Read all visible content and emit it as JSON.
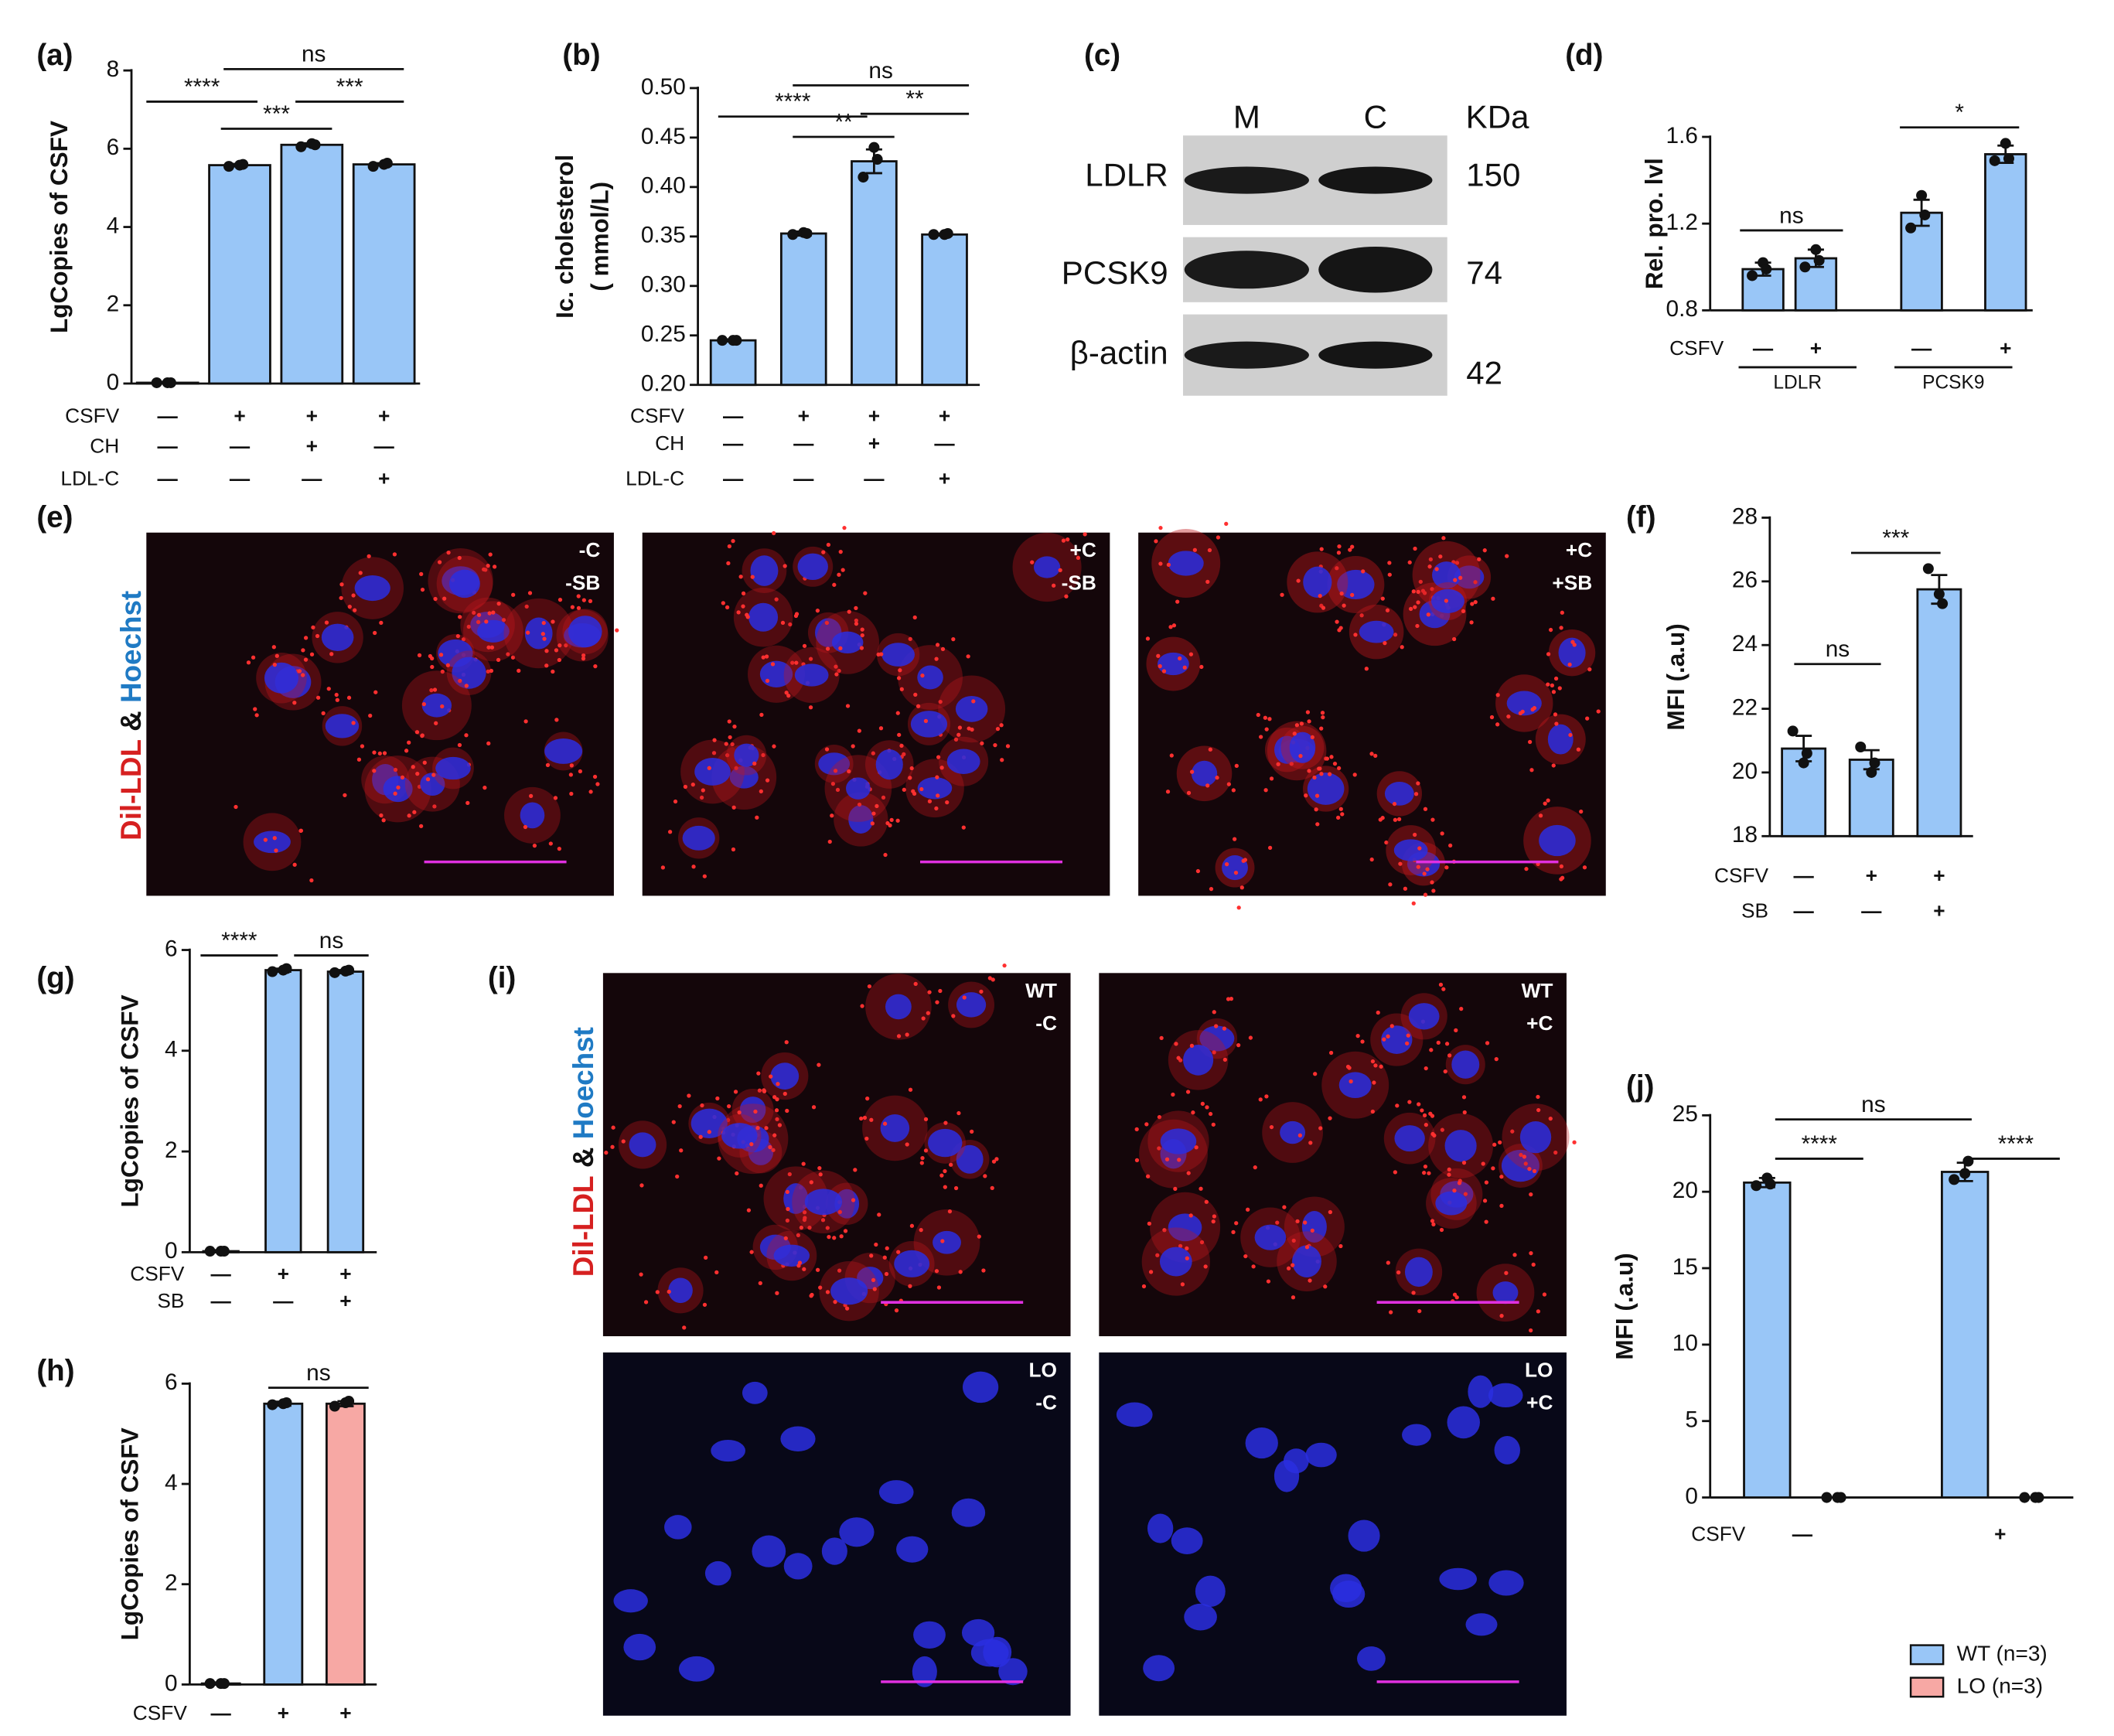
{
  "chart_data": [
    {
      "type": "bar",
      "label": "(a)",
      "ylabel": [
        "LgCopies of CSFV"
      ],
      "ylim": [
        0,
        8
      ],
      "yticks": [
        0,
        2,
        4,
        6,
        8
      ],
      "values": [
        0.02,
        5.58,
        6.1,
        5.6
      ],
      "errors": [
        0.02,
        0.03,
        0.04,
        0.03
      ],
      "color": "#99c6f7",
      "points": [
        [
          0.02,
          0.02,
          0.02
        ],
        [
          5.55,
          5.58,
          5.6
        ],
        [
          6.05,
          6.13,
          6.1
        ],
        [
          5.55,
          5.6,
          5.63
        ]
      ],
      "conditions": [
        {
          "name": "CSFV",
          "marks": [
            "—",
            "+",
            "+",
            "+"
          ]
        },
        {
          "name": "CH",
          "marks": [
            "—",
            "—",
            "+",
            "—"
          ]
        },
        {
          "name": "LDL-C",
          "marks": [
            "—",
            "—",
            "—",
            "+"
          ]
        }
      ],
      "annotations": [
        "****",
        "***",
        "***",
        "ns"
      ]
    },
    {
      "type": "bar",
      "label": "(b)",
      "ylabel": [
        "Ic. cholesterol",
        "( mmol/L)"
      ],
      "ylim": [
        0.2,
        0.5
      ],
      "yticks": [
        {
          "value": 0.2,
          "label": "0.20"
        },
        0.25,
        {
          "value": 0.3,
          "label": "0.30"
        },
        0.35,
        {
          "value": 0.4,
          "label": "0.40"
        },
        0.45,
        {
          "value": 0.5,
          "label": "0.50"
        }
      ],
      "values": [
        0.245,
        0.353,
        0.426,
        0.352
      ],
      "errors": [
        0.001,
        0.002,
        0.012,
        0.001
      ],
      "color": "#99c6f7",
      "points": [
        [
          0.245,
          0.245,
          0.245
        ],
        [
          0.352,
          0.354,
          0.353
        ],
        [
          0.41,
          0.44,
          0.428
        ],
        [
          0.352,
          0.352,
          0.353
        ]
      ],
      "conditions": [
        {
          "name": "CSFV",
          "marks": [
            "—",
            "+",
            "+",
            "+"
          ]
        },
        {
          "name": "CH",
          "marks": [
            "—",
            "—",
            "+",
            "—"
          ]
        },
        {
          "name": "LDL-C",
          "marks": [
            "—",
            "—",
            "—",
            "+"
          ]
        }
      ],
      "annotations": [
        "****",
        "**",
        "**",
        "ns"
      ]
    },
    {
      "type": "bar",
      "label": "(d)",
      "ylabel": [
        "Rel. pro. lvl"
      ],
      "ylim": [
        0.8,
        1.6
      ],
      "yticks": [
        0.8,
        1.2,
        1.6
      ],
      "values": [
        0.99,
        1.04,
        1.25,
        1.52
      ],
      "errors": [
        0.03,
        0.04,
        0.06,
        0.04
      ],
      "color": "#99c6f7",
      "points": [
        [
          0.96,
          1.02,
          0.99
        ],
        [
          1.0,
          1.08,
          1.03
        ],
        [
          1.18,
          1.33,
          1.24
        ],
        [
          1.49,
          1.57,
          1.5
        ]
      ],
      "conditions": [
        {
          "name": "CSFV",
          "marks": [
            "—",
            "+",
            "—",
            "+"
          ]
        }
      ],
      "groups": [
        "LDLR",
        "PCSK9"
      ],
      "annotations": [
        "ns",
        "*"
      ]
    },
    {
      "type": "bar",
      "label": "(f)",
      "ylabel": [
        "MFI (.a.u)"
      ],
      "ylim": [
        18,
        28
      ],
      "yticks": [
        18,
        20,
        22,
        24,
        26,
        28
      ],
      "values": [
        20.75,
        20.4,
        25.75
      ],
      "errors": [
        0.4,
        0.3,
        0.45
      ],
      "color": "#99c6f7",
      "points": [
        [
          21.3,
          20.3,
          20.6
        ],
        [
          20.8,
          20.0,
          20.3
        ],
        [
          26.4,
          25.6,
          25.3
        ]
      ],
      "conditions": [
        {
          "name": "CSFV",
          "marks": [
            "—",
            "+",
            "+"
          ]
        },
        {
          "name": "SB",
          "marks": [
            "—",
            "—",
            "+"
          ]
        }
      ],
      "annotations": [
        "ns",
        "***"
      ]
    },
    {
      "type": "bar",
      "label": "(g)",
      "ylabel": [
        "LgCopies of CSFV"
      ],
      "ylim": [
        0,
        6
      ],
      "yticks": [
        0,
        2,
        4,
        6
      ],
      "values": [
        0.02,
        5.6,
        5.57
      ],
      "errors": [
        0.02,
        0.03,
        0.03
      ],
      "color": "#99c6f7",
      "points": [
        [
          0.02,
          0.02,
          0.02
        ],
        [
          5.57,
          5.6,
          5.63
        ],
        [
          5.55,
          5.58,
          5.6
        ]
      ],
      "conditions": [
        {
          "name": "CSFV",
          "marks": [
            "—",
            "+",
            "+"
          ]
        },
        {
          "name": "SB",
          "marks": [
            "—",
            "—",
            "+"
          ]
        }
      ],
      "annotations": [
        "****",
        "ns"
      ]
    },
    {
      "type": "bar",
      "label": "(h)",
      "ylabel": [
        "LgCopies of CSFV"
      ],
      "ylim": [
        0,
        6
      ],
      "yticks": [
        0,
        2,
        4,
        6
      ],
      "values": [
        0.02,
        5.6,
        5.6
      ],
      "errors": [
        0.02,
        0.04,
        0.05
      ],
      "colors": [
        "#99c6f7",
        "#99c6f7",
        "#f7a8a4"
      ],
      "points": [
        [
          0.02,
          0.02,
          0.02
        ],
        [
          5.58,
          5.6,
          5.62
        ],
        [
          5.55,
          5.62,
          5.65
        ]
      ],
      "conditions": [
        {
          "name": "CSFV",
          "marks": [
            "—",
            "+",
            "+"
          ]
        }
      ],
      "annotations": [
        "ns"
      ]
    },
    {
      "type": "bar",
      "label": "(j)",
      "ylabel": [
        "MFI (.a.u)"
      ],
      "ylim": [
        0,
        25
      ],
      "yticks": [
        0,
        5,
        10,
        15,
        20,
        25
      ],
      "series": [
        {
          "name": "WT (n=3)",
          "color": "#99c6f7",
          "values": [
            20.6,
            21.3
          ],
          "errors": [
            0.3,
            0.6
          ],
          "points": [
            [
              20.4,
              20.9,
              20.5
            ],
            [
              20.8,
              21.2,
              22.0
            ]
          ]
        },
        {
          "name": "LO (n=3)",
          "color": "#f7a8a4",
          "values": [
            0,
            0
          ],
          "points": [
            [
              0,
              0,
              0
            ],
            [
              0,
              0,
              0
            ]
          ]
        }
      ],
      "conditions": [
        {
          "name": "CSFV",
          "marks": [
            "—",
            "+"
          ]
        }
      ],
      "annotations": [
        "****",
        "****",
        "ns"
      ]
    }
  ],
  "blot": {
    "label": "(c)",
    "columns": [
      "M",
      "C"
    ],
    "unit": "KDa",
    "rows": [
      {
        "name": "LDLR",
        "size": 150
      },
      {
        "name": "PCSK9",
        "size": 74
      },
      {
        "name": "β-actin",
        "size": 42
      }
    ]
  },
  "images": [
    {
      "label": "(e)",
      "stain": [
        "Dil-LDL",
        "&",
        "Hoechst"
      ],
      "tiles": [
        [
          "-C",
          "-SB"
        ],
        [
          "+C",
          "-SB"
        ],
        [
          "+C",
          "+SB"
        ]
      ]
    },
    {
      "label": "(i)",
      "stain": [
        "Dil-LDL",
        "&",
        "Hoechst"
      ],
      "tiles": [
        [
          "WT",
          "-C"
        ],
        [
          "WT",
          "+C"
        ],
        [
          "LO",
          "-C"
        ],
        [
          "LO",
          "+C"
        ]
      ]
    }
  ]
}
